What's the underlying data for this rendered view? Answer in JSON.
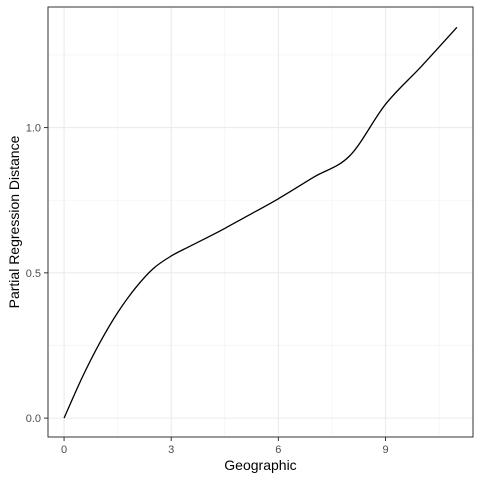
{
  "chart_data": {
    "type": "line",
    "title": "",
    "xlabel": "Geographic",
    "ylabel": "Partial Regression Distance",
    "xlim": [
      -0.45,
      11.45
    ],
    "ylim": [
      -0.065,
      1.415
    ],
    "x_ticks": [
      0,
      3,
      6,
      9
    ],
    "x_tick_labels": [
      "0",
      "3",
      "6",
      "9"
    ],
    "y_ticks": [
      0.0,
      0.5,
      1.0
    ],
    "y_tick_labels": [
      "0.0",
      "0.5",
      "1.0"
    ],
    "grid": true,
    "theme": "bw",
    "line_color": "#000000",
    "series": [
      {
        "x": [
          0,
          0.5,
          1,
          1.5,
          2,
          2.5,
          3,
          3.5,
          4,
          4.5,
          5,
          6,
          7,
          8,
          9,
          10,
          11
        ],
        "values": [
          0.0,
          0.138,
          0.259,
          0.363,
          0.448,
          0.515,
          0.558,
          0.59,
          0.621,
          0.653,
          0.687,
          0.755,
          0.83,
          0.903,
          1.08,
          1.21,
          1.345
        ]
      }
    ]
  }
}
